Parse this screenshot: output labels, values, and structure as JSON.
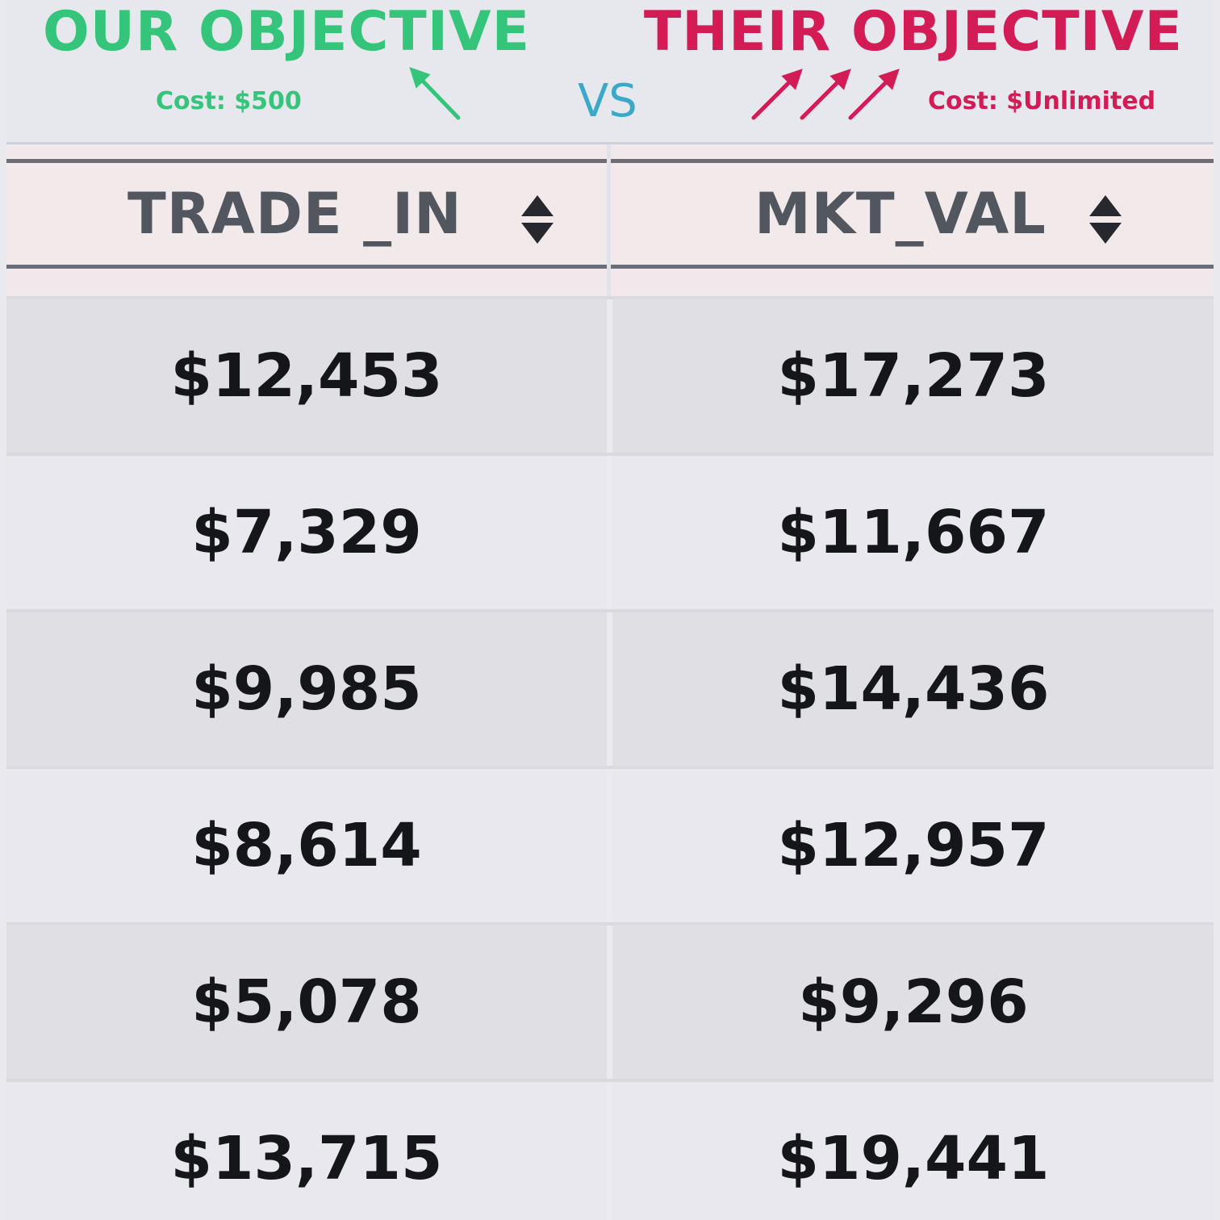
{
  "header": {
    "ours": {
      "title": "OUR OBJECTIVE",
      "cost": "Cost: $500",
      "color": "#35c57a",
      "arrow_icon": "arrow-up-left-icon"
    },
    "vs": "VS",
    "theirs": {
      "title": "THEIR OBJECTIVE",
      "cost": "Cost: $Unlimited",
      "color": "#d31b55",
      "arrow_icon": "arrow-up-right-icon"
    }
  },
  "table": {
    "columns": [
      {
        "label": "TRADE _IN",
        "sort_icon": "sort-icon"
      },
      {
        "label": "MKT_VAL",
        "sort_icon": "sort-icon"
      }
    ],
    "rows": [
      {
        "trade_in": "$12,453",
        "mkt_val": "$17,273"
      },
      {
        "trade_in": "$7,329",
        "mkt_val": "$11,667"
      },
      {
        "trade_in": "$9,985",
        "mkt_val": "$14,436"
      },
      {
        "trade_in": "$8,614",
        "mkt_val": "$12,957"
      },
      {
        "trade_in": "$5,078",
        "mkt_val": "$9,296"
      },
      {
        "trade_in": "$13,715",
        "mkt_val": "$19,441"
      }
    ]
  },
  "colors": {
    "header_accent_vs": "#3aa9c9",
    "header_rule": "#6b6e76",
    "row_shaded": "#dfdfe4",
    "row_plain": "#e8e8ee"
  }
}
